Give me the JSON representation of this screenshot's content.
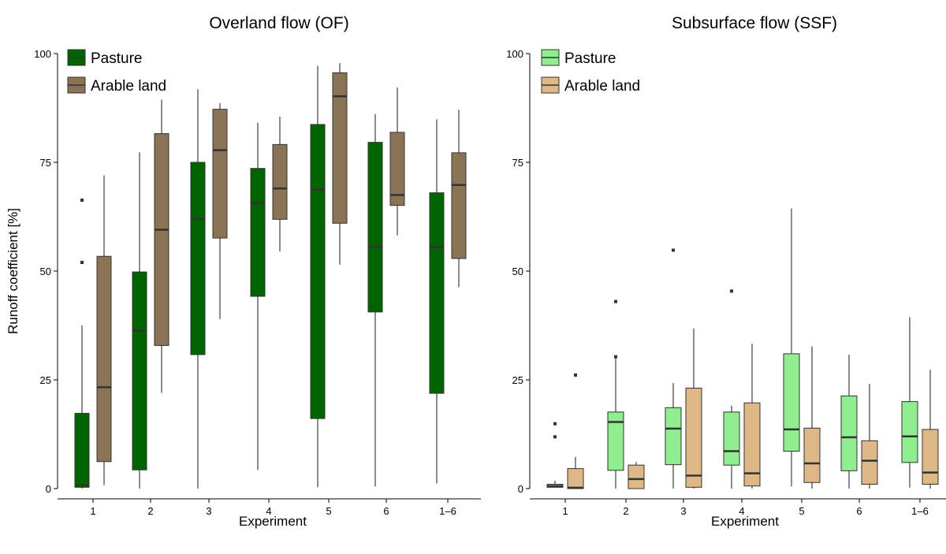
{
  "chart_data": [
    {
      "type": "box",
      "title": "Overland flow (OF)",
      "xlabel": "Experiment",
      "ylabel": "Runoff coefficient [%]",
      "ylim": [
        0,
        100
      ],
      "yticks": [
        0,
        25,
        50,
        75,
        100
      ],
      "categories": [
        "1",
        "2",
        "3",
        "4",
        "5",
        "6",
        "1–6"
      ],
      "legend_position": "top-left",
      "series": [
        {
          "name": "Pasture",
          "color": "#006400",
          "boxes": [
            {
              "whisker_low": 0,
              "q1": 0.3,
              "median": 0.8,
              "q3": 17.3,
              "whisker_high": 37.5,
              "outliers": [
                52,
                66.3
              ]
            },
            {
              "whisker_low": 0,
              "q1": 4.3,
              "median": 36.3,
              "q3": 49.8,
              "whisker_high": 77.3,
              "outliers": []
            },
            {
              "whisker_low": 0,
              "q1": 30.8,
              "median": 62,
              "q3": 75,
              "whisker_high": 91.8,
              "outliers": []
            },
            {
              "whisker_low": 4.3,
              "q1": 44.2,
              "median": 65.6,
              "q3": 73.6,
              "whisker_high": 84.1,
              "outliers": []
            },
            {
              "whisker_low": 0.3,
              "q1": 16.1,
              "median": 68.8,
              "q3": 83.7,
              "whisker_high": 97.2,
              "outliers": []
            },
            {
              "whisker_low": 0.5,
              "q1": 40.6,
              "median": 55.6,
              "q3": 79.6,
              "whisker_high": 86.1,
              "outliers": []
            },
            {
              "whisker_low": 1.2,
              "q1": 21.9,
              "median": 55.5,
              "q3": 68,
              "whisker_high": 84.9,
              "outliers": []
            }
          ]
        },
        {
          "name": "Arable land",
          "color": "#8b7355",
          "boxes": [
            {
              "whisker_low": 0.8,
              "q1": 6.2,
              "median": 23.3,
              "q3": 53.4,
              "whisker_high": 72,
              "outliers": []
            },
            {
              "whisker_low": 22,
              "q1": 32.9,
              "median": 59.5,
              "q3": 81.6,
              "whisker_high": 89.4,
              "outliers": []
            },
            {
              "whisker_low": 39,
              "q1": 57.6,
              "median": 77.8,
              "q3": 87.2,
              "whisker_high": 88.6,
              "outliers": []
            },
            {
              "whisker_low": 54.5,
              "q1": 61.9,
              "median": 69,
              "q3": 79.1,
              "whisker_high": 85.5,
              "outliers": []
            },
            {
              "whisker_low": 51.5,
              "q1": 61,
              "median": 90.2,
              "q3": 95.6,
              "whisker_high": 97.8,
              "outliers": []
            },
            {
              "whisker_low": 58.2,
              "q1": 65.1,
              "median": 67.5,
              "q3": 81.9,
              "whisker_high": 92.2,
              "outliers": []
            },
            {
              "whisker_low": 46.3,
              "q1": 52.9,
              "median": 69.8,
              "q3": 77.2,
              "whisker_high": 87.1,
              "outliers": []
            }
          ]
        }
      ]
    },
    {
      "type": "box",
      "title": "Subsurface flow (SSF)",
      "xlabel": "Experiment",
      "ylabel": "",
      "ylim": [
        0,
        100
      ],
      "yticks": [
        0,
        25,
        50,
        75,
        100
      ],
      "categories": [
        "1",
        "2",
        "3",
        "4",
        "5",
        "6",
        "1–6"
      ],
      "legend_position": "top-left",
      "series": [
        {
          "name": "Pasture",
          "color": "#90ee90",
          "boxes": [
            {
              "whisker_low": 0.2,
              "q1": 0.3,
              "median": 0.6,
              "q3": 1,
              "whisker_high": 1.8,
              "outliers": [
                11.9,
                14.9
              ]
            },
            {
              "whisker_low": 0,
              "q1": 4.2,
              "median": 15.3,
              "q3": 17.6,
              "whisker_high": 29.9,
              "outliers": [
                30.3,
                43
              ]
            },
            {
              "whisker_low": 0,
              "q1": 5.5,
              "median": 13.8,
              "q3": 18.6,
              "whisker_high": 24.3,
              "outliers": [
                54.8
              ]
            },
            {
              "whisker_low": 0,
              "q1": 5.4,
              "median": 8.6,
              "q3": 17.6,
              "whisker_high": 19.1,
              "outliers": [
                45.4
              ]
            },
            {
              "whisker_low": 0.5,
              "q1": 8.6,
              "median": 13.6,
              "q3": 31,
              "whisker_high": 64.4,
              "outliers": []
            },
            {
              "whisker_low": 0,
              "q1": 4.1,
              "median": 11.8,
              "q3": 21.3,
              "whisker_high": 30.8,
              "outliers": []
            },
            {
              "whisker_low": 0.2,
              "q1": 6,
              "median": 12,
              "q3": 20,
              "whisker_high": 39.4,
              "outliers": []
            }
          ]
        },
        {
          "name": "Arable land",
          "color": "#deb887",
          "boxes": [
            {
              "whisker_low": 0,
              "q1": 0,
              "median": 0.2,
              "q3": 4.6,
              "whisker_high": 7.3,
              "outliers": [
                26.1
              ]
            },
            {
              "whisker_low": 0,
              "q1": 0,
              "median": 2.2,
              "q3": 5.4,
              "whisker_high": 6.1,
              "outliers": []
            },
            {
              "whisker_low": 0,
              "q1": 0.3,
              "median": 3,
              "q3": 23.1,
              "whisker_high": 36.8,
              "outliers": []
            },
            {
              "whisker_low": 0,
              "q1": 0.6,
              "median": 3.5,
              "q3": 19.7,
              "whisker_high": 33.3,
              "outliers": []
            },
            {
              "whisker_low": 0,
              "q1": 1.4,
              "median": 5.8,
              "q3": 13.9,
              "whisker_high": 32.7,
              "outliers": []
            },
            {
              "whisker_low": 0,
              "q1": 1,
              "median": 6.4,
              "q3": 11,
              "whisker_high": 24.1,
              "outliers": []
            },
            {
              "whisker_low": 0,
              "q1": 1,
              "median": 3.7,
              "q3": 13.6,
              "whisker_high": 27.3,
              "outliers": []
            }
          ]
        }
      ]
    }
  ]
}
